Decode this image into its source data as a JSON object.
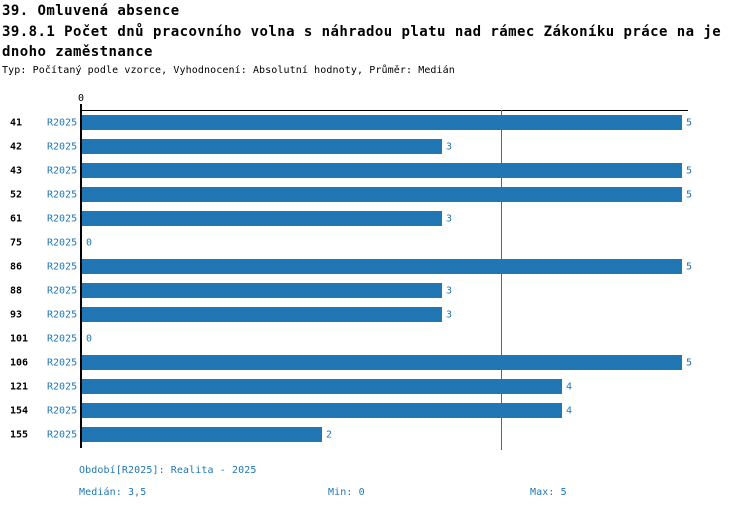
{
  "header": {
    "title_line1": "39. Omluvená absence",
    "title_line2": "39.8.1 Počet dnů pracovního volna s náhradou platu nad rámec Zákoníku práce na je",
    "title_line3": "dnoho zaměstnance",
    "meta": "Typ: Počítaný podle vzorce, Vyhodnocení: Absolutní hodnoty, Průměr: Medián"
  },
  "chart_data": {
    "type": "bar",
    "orientation": "horizontal",
    "title": "39.8.1 Počet dnů pracovního volna s náhradou platu nad rámec Zákoníku práce na jednoho zaměstnance",
    "categories": [
      "41",
      "42",
      "43",
      "52",
      "61",
      "75",
      "86",
      "88",
      "93",
      "101",
      "106",
      "121",
      "154",
      "155"
    ],
    "series": [
      {
        "name": "R2025",
        "values": [
          5,
          3,
          5,
          5,
          3,
          0,
          5,
          3,
          3,
          0,
          5,
          4,
          4,
          2
        ]
      }
    ],
    "value_labels": [
      "5",
      "3",
      "5",
      "5",
      "3",
      "0",
      "5",
      "3",
      "3",
      "0",
      "5",
      "4",
      "4",
      "2"
    ],
    "xlim": [
      0,
      5
    ],
    "x_ticks": [
      "0"
    ],
    "median_reference_line": 3.5,
    "grid": false,
    "legend_position": "none",
    "bar_color": "#2176B4",
    "accent_text_color": "#1F77B4"
  },
  "footer": {
    "period": "Období[R2025]: Realita - 2025",
    "median": "Medián: 3,5",
    "min": "Min: 0",
    "max": "Max: 5"
  }
}
